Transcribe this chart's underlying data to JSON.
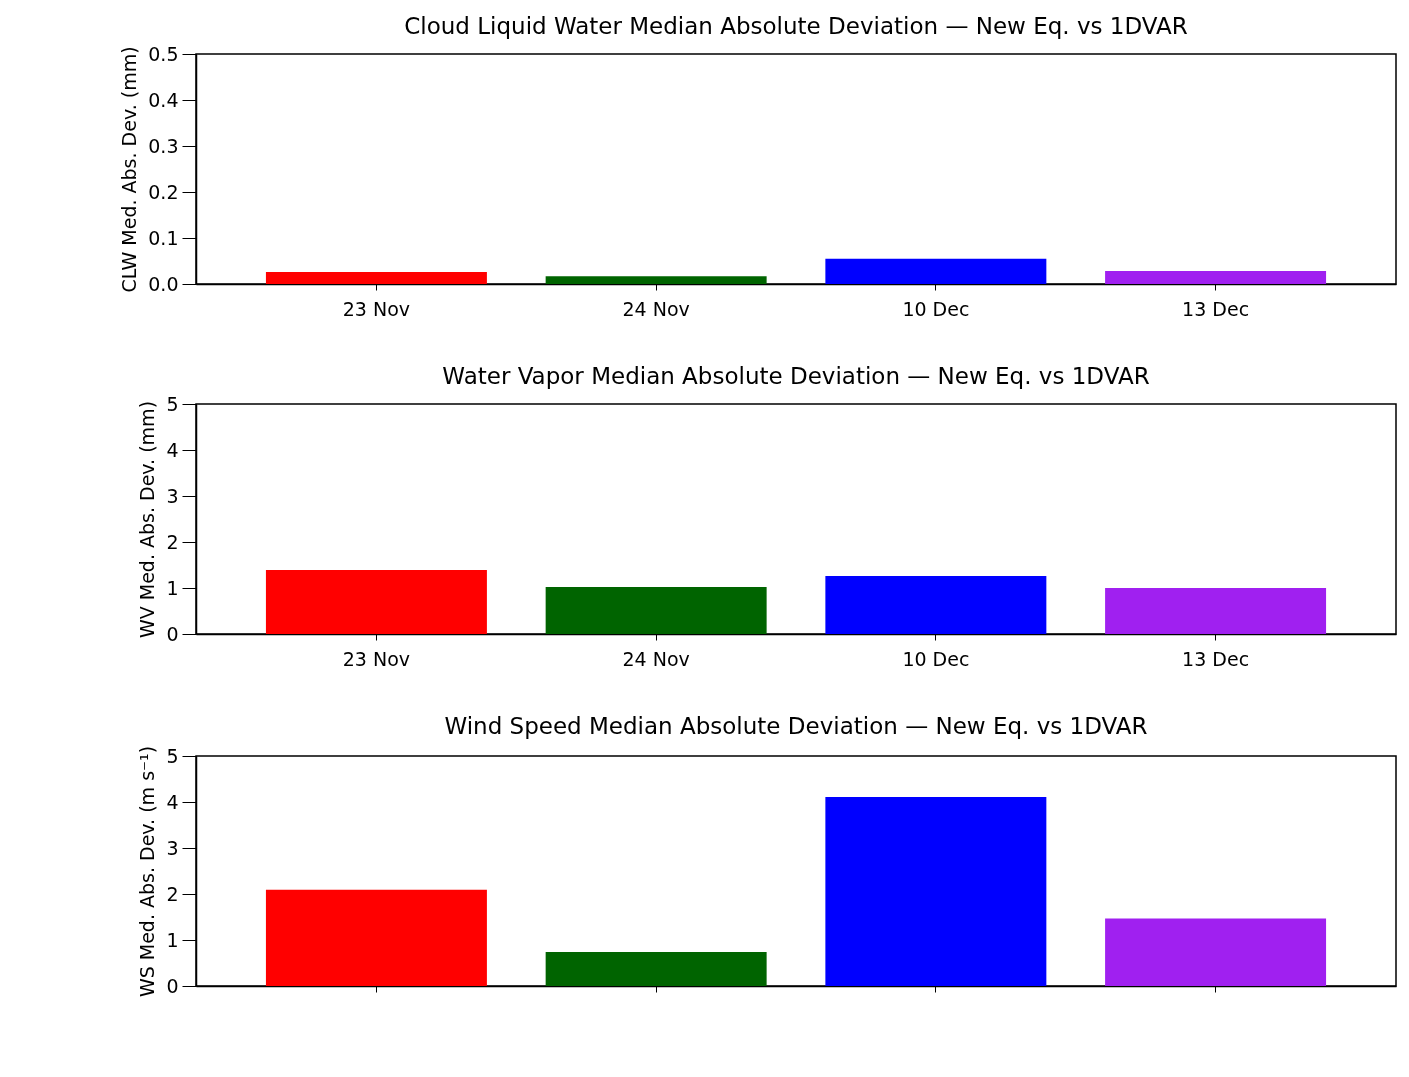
{
  "chart_data": [
    {
      "type": "bar",
      "title": "Cloud Liquid Water Median Absolute Deviation — New Eq. vs 1DVAR",
      "ylabel": "CLW Med. Abs. Dev. (mm)",
      "categories": [
        "23 Nov",
        "24 Nov",
        "10 Dec",
        "13 Dec"
      ],
      "values": [
        0.026,
        0.017,
        0.055,
        0.028
      ],
      "colors": [
        "#ff0000",
        "#006400",
        "#0000ff",
        "#a020f0"
      ],
      "ylim": [
        0,
        0.5
      ],
      "yticks": [
        {
          "value": 0,
          "label": "0.0"
        },
        0.1,
        0.2,
        0.3,
        0.4,
        0.5
      ],
      "grid": false,
      "legend": false
    },
    {
      "type": "bar",
      "title": "Water Vapor Median Absolute Deviation — New Eq. vs 1DVAR",
      "ylabel": "WV Med. Abs. Dev. (mm)",
      "categories": [
        "23 Nov",
        "24 Nov",
        "10 Dec",
        "13 Dec"
      ],
      "values": [
        1.39,
        1.02,
        1.26,
        1.0
      ],
      "colors": [
        "#ff0000",
        "#006400",
        "#0000ff",
        "#a020f0"
      ],
      "ylim": [
        0,
        5
      ],
      "yticks": [
        0,
        1,
        2,
        3,
        4,
        5
      ],
      "grid": false,
      "legend": false
    },
    {
      "type": "bar",
      "title": "Wind Speed Median Absolute Deviation — New Eq. vs 1DVAR",
      "ylabel": "WS Med. Abs. Dev. (m s⁻¹)",
      "categories": [
        null,
        null,
        null,
        null
      ],
      "values": [
        2.09,
        0.74,
        4.11,
        1.47
      ],
      "colors": [
        "#ff0000",
        "#006400",
        "#0000ff",
        "#a020f0"
      ],
      "ylim": [
        0,
        5
      ],
      "yticks": [
        0,
        1,
        2,
        3,
        4,
        5
      ],
      "grid": false,
      "legend": false,
      "tick_labels": "y"
    }
  ]
}
